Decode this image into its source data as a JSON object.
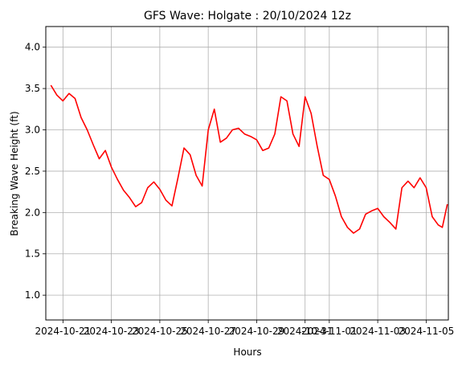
{
  "chart_data": {
    "type": "line",
    "title": "GFS Wave: Holgate : 20/10/2024 12z",
    "xlabel": "Hours",
    "ylabel": "Breaking Wave Height (ft)",
    "x_ticks": [
      "2024-10-21",
      "2024-10-23",
      "2024-10-25",
      "2024-10-27",
      "2024-10-29",
      "2024-10-31",
      "2024-11-01",
      "2024-11-03",
      "2024-11-05"
    ],
    "x_tick_dates": [
      "2024-10-21",
      "2024-10-23",
      "2024-10-25",
      "2024-10-27",
      "2024-10-29",
      "2024-10-31",
      "2024-11-01",
      "2024-11-03",
      "2024-11-05"
    ],
    "xlim": [
      "2024-10-20T07:00",
      "2024-11-05T22:00"
    ],
    "y_ticks": [
      "1.0",
      "1.5",
      "2.0",
      "2.5",
      "3.0",
      "3.5",
      "4.0"
    ],
    "ylim": [
      0.7,
      4.25
    ],
    "grid": true,
    "legend": "none",
    "series": [
      {
        "color": "#ff0000",
        "points": [
          [
            "2024-10-20T12:00",
            3.54
          ],
          [
            "2024-10-20T18:00",
            3.42
          ],
          [
            "2024-10-21T00:00",
            3.35
          ],
          [
            "2024-10-21T06:00",
            3.44
          ],
          [
            "2024-10-21T12:00",
            3.38
          ],
          [
            "2024-10-21T18:00",
            3.15
          ],
          [
            "2024-10-22T00:00",
            3.0
          ],
          [
            "2024-10-22T06:00",
            2.82
          ],
          [
            "2024-10-22T12:00",
            2.65
          ],
          [
            "2024-10-22T18:00",
            2.75
          ],
          [
            "2024-10-23T00:00",
            2.55
          ],
          [
            "2024-10-23T06:00",
            2.4
          ],
          [
            "2024-10-23T12:00",
            2.27
          ],
          [
            "2024-10-23T18:00",
            2.18
          ],
          [
            "2024-10-24T00:00",
            2.07
          ],
          [
            "2024-10-24T06:00",
            2.12
          ],
          [
            "2024-10-24T12:00",
            2.3
          ],
          [
            "2024-10-24T18:00",
            2.37
          ],
          [
            "2024-10-25T00:00",
            2.28
          ],
          [
            "2024-10-25T06:00",
            2.15
          ],
          [
            "2024-10-25T12:00",
            2.08
          ],
          [
            "2024-10-25T18:00",
            2.42
          ],
          [
            "2024-10-26T00:00",
            2.78
          ],
          [
            "2024-10-26T06:00",
            2.7
          ],
          [
            "2024-10-26T12:00",
            2.45
          ],
          [
            "2024-10-26T18:00",
            2.32
          ],
          [
            "2024-10-27T00:00",
            3.0
          ],
          [
            "2024-10-27T06:00",
            3.25
          ],
          [
            "2024-10-27T12:00",
            2.85
          ],
          [
            "2024-10-27T18:00",
            2.9
          ],
          [
            "2024-10-28T00:00",
            3.0
          ],
          [
            "2024-10-28T06:00",
            3.02
          ],
          [
            "2024-10-28T12:00",
            2.95
          ],
          [
            "2024-10-28T18:00",
            2.92
          ],
          [
            "2024-10-29T00:00",
            2.88
          ],
          [
            "2024-10-29T06:00",
            2.75
          ],
          [
            "2024-10-29T12:00",
            2.78
          ],
          [
            "2024-10-29T18:00",
            2.95
          ],
          [
            "2024-10-30T00:00",
            3.4
          ],
          [
            "2024-10-30T06:00",
            3.35
          ],
          [
            "2024-10-30T12:00",
            2.95
          ],
          [
            "2024-10-30T18:00",
            2.8
          ],
          [
            "2024-10-31T00:00",
            3.4
          ],
          [
            "2024-10-31T06:00",
            3.2
          ],
          [
            "2024-10-31T12:00",
            2.8
          ],
          [
            "2024-10-31T18:00",
            2.45
          ],
          [
            "2024-11-01T00:00",
            2.4
          ],
          [
            "2024-11-01T06:00",
            2.2
          ],
          [
            "2024-11-01T12:00",
            1.95
          ],
          [
            "2024-11-01T18:00",
            1.82
          ],
          [
            "2024-11-02T00:00",
            1.75
          ],
          [
            "2024-11-02T06:00",
            1.8
          ],
          [
            "2024-11-02T12:00",
            1.98
          ],
          [
            "2024-11-02T18:00",
            2.02
          ],
          [
            "2024-11-03T00:00",
            2.05
          ],
          [
            "2024-11-03T06:00",
            1.95
          ],
          [
            "2024-11-03T12:00",
            1.88
          ],
          [
            "2024-11-03T18:00",
            1.8
          ],
          [
            "2024-11-04T00:00",
            2.3
          ],
          [
            "2024-11-04T06:00",
            2.38
          ],
          [
            "2024-11-04T12:00",
            2.3
          ],
          [
            "2024-11-04T18:00",
            2.42
          ],
          [
            "2024-11-05T00:00",
            2.3
          ],
          [
            "2024-11-05T06:00",
            1.95
          ],
          [
            "2024-11-05T12:00",
            1.85
          ],
          [
            "2024-11-05T16:00",
            1.82
          ],
          [
            "2024-11-05T21:00",
            2.1
          ]
        ]
      }
    ]
  }
}
